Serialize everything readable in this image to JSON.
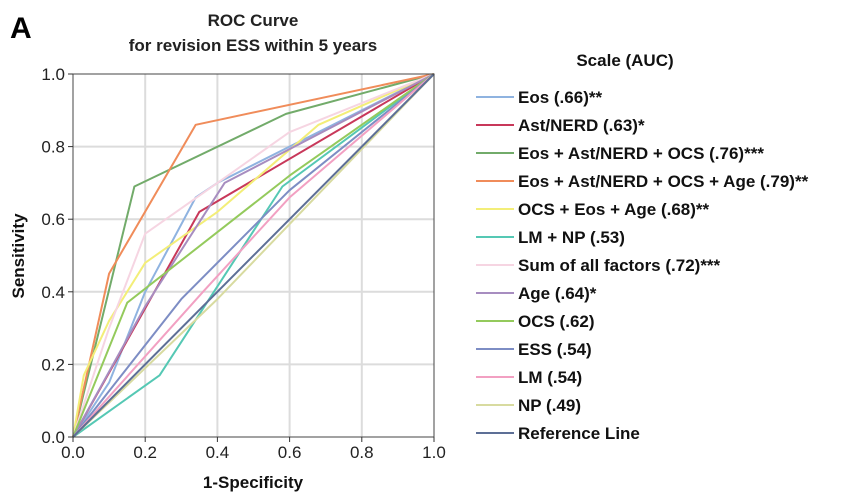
{
  "panel_label": "A",
  "chart_data": {
    "type": "line",
    "title": [
      "ROC Curve",
      "for revision ESS within 5 years"
    ],
    "xlabel": "1-Specificity",
    "ylabel": "Sensitivity",
    "xlim": [
      0,
      1
    ],
    "ylim": [
      0,
      1
    ],
    "xticks": [
      "0.0",
      "0.2",
      "0.4",
      "0.6",
      "0.8",
      "1.0"
    ],
    "yticks": [
      "0.0",
      "0.2",
      "0.4",
      "0.6",
      "0.8",
      "1.0"
    ],
    "grid": true,
    "legend_title": "Scale (AUC)",
    "legend_position": "right",
    "series": [
      {
        "name": "Eos (.66)**",
        "color": "#8fb3e0",
        "x": [
          0,
          0.1,
          0.2,
          0.34,
          0.4,
          1.0
        ],
        "y": [
          0,
          0.15,
          0.4,
          0.66,
          0.7,
          1.0
        ]
      },
      {
        "name": "Ast/NERD (.63)*",
        "color": "#c8385a",
        "x": [
          0,
          0.35,
          1.0
        ],
        "y": [
          0,
          0.62,
          1.0
        ]
      },
      {
        "name": "Eos + Ast/NERD + OCS (.76)***",
        "color": "#72ab6a",
        "x": [
          0,
          0.17,
          0.59,
          1.0
        ],
        "y": [
          0,
          0.69,
          0.89,
          1.0
        ]
      },
      {
        "name": "Eos + Ast/NERD + OCS + Age (.79)**",
        "color": "#f08c5a",
        "x": [
          0,
          0.1,
          0.34,
          1.0
        ],
        "y": [
          0,
          0.45,
          0.86,
          1.0
        ]
      },
      {
        "name": "OCS + Eos + Age (.68)**",
        "color": "#f3ee78",
        "x": [
          0,
          0.03,
          0.1,
          0.2,
          0.4,
          0.68,
          1.0
        ],
        "y": [
          0,
          0.17,
          0.32,
          0.48,
          0.62,
          0.86,
          1.0
        ]
      },
      {
        "name": "LM + NP (.53)",
        "color": "#55c8b4",
        "x": [
          0,
          0.24,
          0.58,
          1.0
        ],
        "y": [
          0,
          0.17,
          0.69,
          1.0
        ]
      },
      {
        "name": "Sum of all factors (.72)***",
        "color": "#f6d5e2",
        "x": [
          0,
          0.1,
          0.2,
          0.4,
          0.6,
          1.0
        ],
        "y": [
          0,
          0.3,
          0.56,
          0.7,
          0.84,
          1.0
        ]
      },
      {
        "name": "Age (.64)*",
        "color": "#a78dc0",
        "x": [
          0,
          0.2,
          0.42,
          1.0
        ],
        "y": [
          0,
          0.36,
          0.7,
          1.0
        ]
      },
      {
        "name": "OCS (.62)",
        "color": "#94ca5c",
        "x": [
          0,
          0.15,
          0.6,
          1.0
        ],
        "y": [
          0,
          0.37,
          0.72,
          1.0
        ]
      },
      {
        "name": "ESS (.54)",
        "color": "#7d8dc4",
        "x": [
          0,
          0.3,
          0.6,
          1.0
        ],
        "y": [
          0,
          0.38,
          0.68,
          1.0
        ]
      },
      {
        "name": "LM (.54)",
        "color": "#f2a0c2",
        "x": [
          0,
          0.36,
          0.6,
          1.0
        ],
        "y": [
          0,
          0.4,
          0.66,
          1.0
        ]
      },
      {
        "name": "NP (.49)",
        "color": "#d8dba0",
        "x": [
          0,
          0.4,
          1.0
        ],
        "y": [
          0,
          0.38,
          1.0
        ]
      },
      {
        "name": "Reference Line",
        "color": "#5d6f96",
        "x": [
          0,
          1.0
        ],
        "y": [
          0,
          1.0
        ]
      }
    ]
  }
}
